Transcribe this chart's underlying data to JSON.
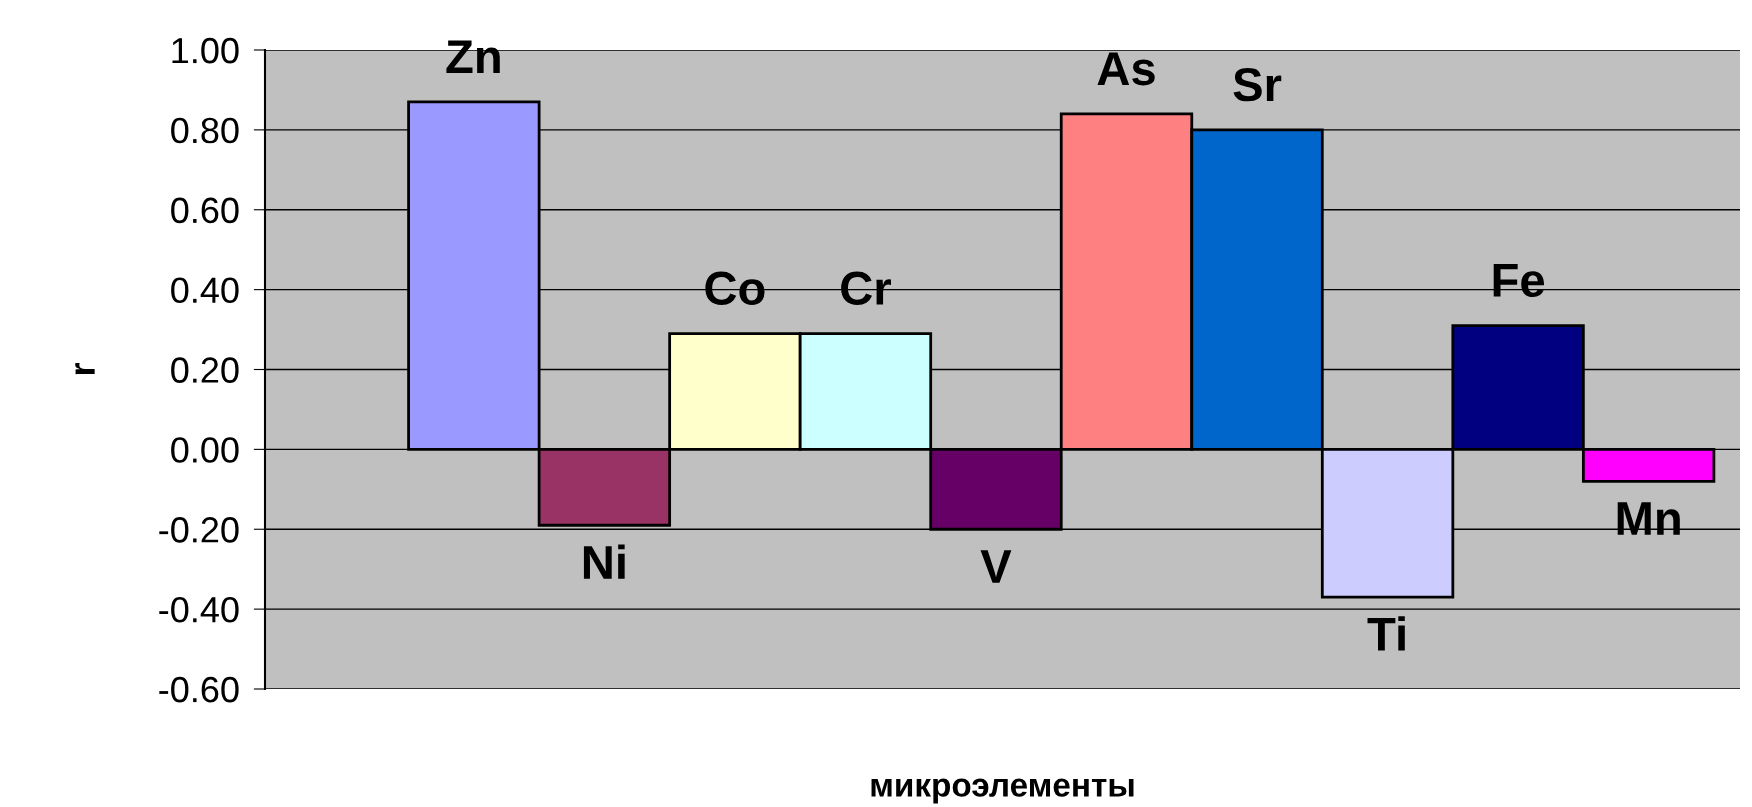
{
  "chart_data": {
    "type": "bar",
    "xlabel": "микроэлементы",
    "ylabel": "r",
    "categories": [
      "Zn",
      "Ni",
      "Co",
      "Cr",
      "V",
      "As",
      "Sr",
      "Ti",
      "Fe",
      "Mn"
    ],
    "values": [
      0.87,
      -0.19,
      0.29,
      0.29,
      -0.2,
      0.84,
      0.8,
      -0.37,
      0.31,
      -0.08
    ],
    "colors": [
      "#9999ff",
      "#993366",
      "#ffffcc",
      "#ccffff",
      "#660066",
      "#ff8080",
      "#0066cc",
      "#ccccff",
      "#000080",
      "#ff00ff"
    ],
    "ylim": [
      -0.6,
      1.0
    ],
    "yticks": [
      {
        "value": -0.6,
        "label": "-0.60"
      },
      {
        "value": -0.4,
        "label": "-0.40"
      },
      {
        "value": -0.2,
        "label": "-0.20"
      },
      {
        "value": 0.0,
        "label": "0.00"
      },
      {
        "value": 0.2,
        "label": "0.20"
      },
      {
        "value": 0.4,
        "label": "0.40"
      },
      {
        "value": 0.6,
        "label": "0.60"
      },
      {
        "value": 0.8,
        "label": "0.80"
      },
      {
        "value": 1.0,
        "label": "1.00"
      }
    ],
    "grid": "y"
  }
}
